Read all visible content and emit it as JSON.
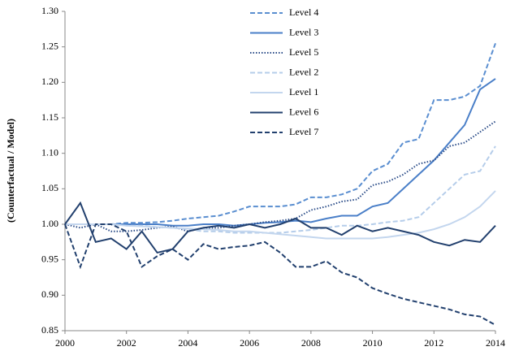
{
  "chart_data": {
    "type": "line",
    "y_label": "(Counterfactual / Model)",
    "x": [
      2000,
      2000.5,
      2001,
      2001.5,
      2002,
      2002.5,
      2003,
      2003.5,
      2004,
      2004.5,
      2005,
      2005.5,
      2006,
      2006.5,
      2007,
      2007.5,
      2008,
      2008.5,
      2009,
      2009.5,
      2010,
      2010.5,
      2011,
      2011.5,
      2012,
      2012.5,
      2013,
      2013.5,
      2014
    ],
    "xlim": [
      2000,
      2014
    ],
    "xticks": [
      2000,
      2002,
      2004,
      2006,
      2008,
      2010,
      2012,
      2014
    ],
    "ylim": [
      0.85,
      1.3
    ],
    "yticks": [
      {
        "value": 0.85,
        "label": "0.85"
      },
      {
        "value": 0.9,
        "label": "0.90"
      },
      {
        "value": 0.95,
        "label": "0.95"
      },
      {
        "value": 1.0,
        "label": "1.00"
      },
      {
        "value": 1.05,
        "label": "1.05"
      },
      {
        "value": 1.1,
        "label": "1.10"
      },
      {
        "value": 1.15,
        "label": "1.15"
      },
      {
        "value": 1.2,
        "label": "1.20"
      },
      {
        "value": 1.25,
        "label": "1.25"
      },
      {
        "value": 1.3,
        "label": "1.30"
      }
    ],
    "legend": "top",
    "series": [
      {
        "name": "Level 4",
        "color": "#5a8ed0",
        "dash": "dashed",
        "values": [
          1.0,
          1.0,
          1.0,
          1.0,
          1.002,
          1.002,
          1.003,
          1.005,
          1.008,
          1.01,
          1.012,
          1.018,
          1.025,
          1.025,
          1.025,
          1.028,
          1.038,
          1.038,
          1.042,
          1.05,
          1.075,
          1.085,
          1.115,
          1.12,
          1.175,
          1.175,
          1.18,
          1.195,
          1.255
        ]
      },
      {
        "name": "Level 3",
        "color": "#4a7fc8",
        "dash": "solid",
        "values": [
          1.0,
          1.0,
          1.0,
          1.0,
          1.0,
          1.0,
          1.0,
          0.998,
          0.998,
          1.0,
          1.0,
          0.998,
          1.0,
          1.002,
          1.003,
          1.005,
          1.003,
          1.008,
          1.012,
          1.012,
          1.025,
          1.03,
          1.05,
          1.07,
          1.09,
          1.115,
          1.14,
          1.19,
          1.205
        ]
      },
      {
        "name": "Level 5",
        "color": "#2b4c88",
        "dash": "dotted",
        "values": [
          1.0,
          0.995,
          1.0,
          0.99,
          0.99,
          0.992,
          0.995,
          0.997,
          0.99,
          0.995,
          0.995,
          0.998,
          1.0,
          1.003,
          1.005,
          1.008,
          1.02,
          1.025,
          1.032,
          1.035,
          1.055,
          1.06,
          1.07,
          1.085,
          1.09,
          1.11,
          1.115,
          1.13,
          1.145
        ]
      },
      {
        "name": "Level 2",
        "color": "#b5cdea",
        "dash": "dashed",
        "values": [
          1.0,
          1.0,
          1.0,
          1.0,
          0.998,
          0.998,
          0.996,
          0.995,
          0.993,
          0.99,
          0.99,
          0.988,
          0.988,
          0.988,
          0.988,
          0.99,
          0.992,
          0.995,
          0.998,
          0.998,
          1.0,
          1.003,
          1.005,
          1.01,
          1.03,
          1.05,
          1.07,
          1.075,
          1.11
        ]
      },
      {
        "name": "Level 1",
        "color": "#c3d6ee",
        "dash": "solid",
        "values": [
          1.0,
          1.0,
          1.0,
          1.0,
          0.998,
          0.997,
          0.996,
          0.995,
          0.994,
          0.993,
          0.992,
          0.99,
          0.99,
          0.988,
          0.986,
          0.984,
          0.982,
          0.98,
          0.98,
          0.98,
          0.98,
          0.982,
          0.985,
          0.988,
          0.993,
          1.0,
          1.01,
          1.025,
          1.047
        ]
      },
      {
        "name": "Level 6",
        "color": "#22406e",
        "dash": "solid",
        "values": [
          1.0,
          1.03,
          0.975,
          0.98,
          0.965,
          0.99,
          0.96,
          0.965,
          0.99,
          0.995,
          0.998,
          0.995,
          1.0,
          0.995,
          1.0,
          1.008,
          0.995,
          0.995,
          0.985,
          0.998,
          0.99,
          0.995,
          0.99,
          0.985,
          0.975,
          0.97,
          0.978,
          0.975,
          0.998
        ]
      },
      {
        "name": "Level 7",
        "color": "#22406e",
        "dash": "dashed",
        "values": [
          1.0,
          0.94,
          1.0,
          1.0,
          0.99,
          0.94,
          0.955,
          0.965,
          0.95,
          0.972,
          0.965,
          0.968,
          0.97,
          0.975,
          0.96,
          0.94,
          0.94,
          0.948,
          0.932,
          0.925,
          0.91,
          0.902,
          0.895,
          0.89,
          0.885,
          0.88,
          0.873,
          0.87,
          0.858
        ]
      }
    ]
  }
}
